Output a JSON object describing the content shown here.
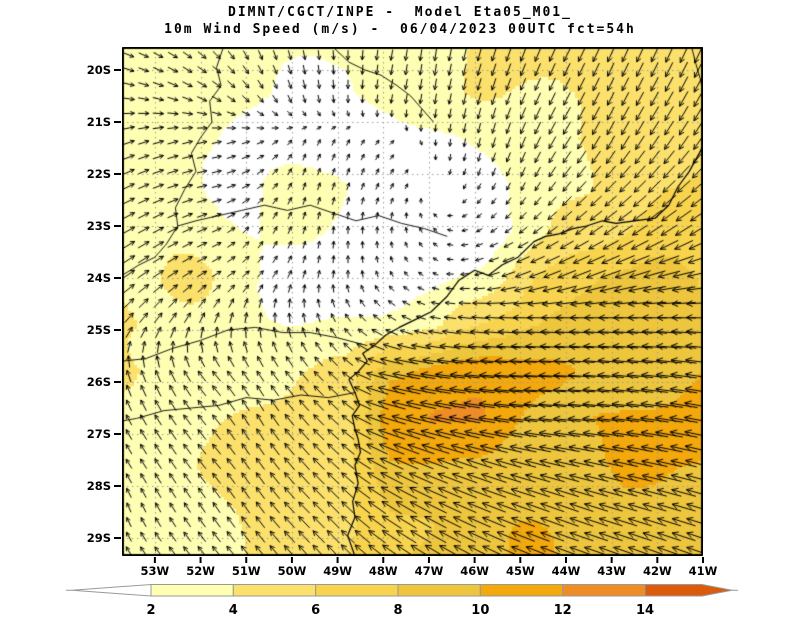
{
  "header": {
    "line1": "DIMNT/CGCT/INPE -  Model Eta05_M01_",
    "line2": "10m Wind Speed (m/s) -  06/04/2023 00UTC fct=54h"
  },
  "chart_data": {
    "type": "heatmap",
    "subtype": "wind-vector-field-map",
    "title": "DIMNT/CGCT/INPE -  Model Eta05_M01_",
    "subtitle": "10m Wind Speed (m/s) -  06/04/2023 00UTC fct=54h",
    "units": "m/s",
    "proj": {
      "lon_min": -53.72,
      "lon_max": -41.0,
      "lat_top": -19.558,
      "lat_bottom": -29.346
    },
    "x_ticks": {
      "labels": [
        "53W",
        "52W",
        "51W",
        "50W",
        "49W",
        "48W",
        "47W",
        "46W",
        "45W",
        "44W",
        "43W",
        "42W",
        "41W"
      ],
      "lons": [
        -53,
        -52,
        -51,
        -50,
        -49,
        -48,
        -47,
        -46,
        -45,
        -44,
        -43,
        -42,
        -41
      ]
    },
    "y_ticks": {
      "labels": [
        "20S",
        "21S",
        "22S",
        "23S",
        "24S",
        "25S",
        "26S",
        "27S",
        "28S",
        "29S"
      ],
      "lats": [
        -20,
        -21,
        -22,
        -23,
        -24,
        -25,
        -26,
        -27,
        -28,
        -29
      ]
    },
    "grid_color": "#999999",
    "frame_color": "#000000",
    "arrow_color": "#000000",
    "coast_color": "#000000",
    "colorbar": {
      "levels": [
        2,
        4,
        6,
        8,
        10,
        12,
        14
      ],
      "labels": [
        "2",
        "4",
        "6",
        "8",
        "10",
        "12",
        "14"
      ],
      "colors": [
        "#ffffb3",
        "#fbe06c",
        "#f8d44e",
        "#eec63e",
        "#f3a80c",
        "#ee8d25",
        "#db5a0b"
      ],
      "under_color": "#ffffff",
      "outline_color": "#999999"
    },
    "wind_grid": {
      "lons": [
        -53.72,
        -52.74,
        -51.76,
        -50.79,
        -49.81,
        -48.83,
        -47.85,
        -46.87,
        -45.9,
        -44.92,
        -43.94,
        -42.96,
        -41.98,
        -41.0
      ],
      "lats": [
        -19.56,
        -20.45,
        -21.34,
        -22.23,
        -23.12,
        -24.01,
        -24.9,
        -25.79,
        -26.68,
        -27.57,
        -28.46,
        -29.35
      ],
      "u": [
        [
          2.5,
          2.5,
          2.0,
          1.0,
          0.5,
          0.0,
          -0.5,
          -0.5,
          -1.0,
          -1.5,
          -2.0,
          -2.0,
          -2.0,
          -2.5
        ],
        [
          3.0,
          3.0,
          2.5,
          1.5,
          0.5,
          0.0,
          -0.5,
          -0.5,
          -1.0,
          -1.5,
          -2.0,
          -2.0,
          -2.5,
          -3.0
        ],
        [
          3.0,
          3.0,
          2.5,
          1.5,
          0.5,
          0.5,
          0.5,
          0.0,
          -0.5,
          -1.5,
          -2.5,
          -2.5,
          -3.0,
          -3.0
        ],
        [
          3.0,
          3.0,
          2.5,
          1.5,
          0.5,
          0.5,
          0.5,
          0.0,
          -0.5,
          -1.0,
          -2.5,
          -3.5,
          -4.0,
          -4.5
        ],
        [
          3.5,
          3.0,
          2.5,
          1.0,
          0.5,
          0.0,
          0.0,
          -0.5,
          -1.0,
          -2.0,
          -3.5,
          -4.5,
          -5.5,
          -6.0
        ],
        [
          3.5,
          3.0,
          2.5,
          1.5,
          0.5,
          0.0,
          -0.5,
          -0.8,
          -2.5,
          -5.5,
          -6.5,
          -7.5,
          -8.0,
          -8.0
        ],
        [
          2.5,
          2.0,
          1.0,
          0.0,
          -0.5,
          -1.5,
          -2.5,
          -3.0,
          -5.5,
          -7.5,
          -8.5,
          -9.0,
          -9.0,
          -9.0
        ],
        [
          -1.0,
          -1.5,
          -2.5,
          -2.0,
          -2.5,
          -3.0,
          -9.5,
          -11.0,
          -11.0,
          -10.5,
          -10.0,
          -9.5,
          -9.5,
          -9.5
        ],
        [
          -1.5,
          -2.0,
          -2.5,
          -2.0,
          -3.0,
          -3.5,
          -10.5,
          -12.0,
          -12.0,
          -10.5,
          -10.0,
          -10.0,
          -10.5,
          -10.5
        ],
        [
          -1.5,
          -2.0,
          -2.5,
          -2.5,
          -3.5,
          -4.0,
          -8.5,
          -9.5,
          -9.5,
          -9.5,
          -9.0,
          -9.0,
          -9.5,
          -9.5
        ],
        [
          -1.0,
          -1.5,
          -2.0,
          -2.5,
          -3.5,
          -4.0,
          -7.0,
          -8.0,
          -8.5,
          -8.5,
          -8.5,
          -8.5,
          -8.5,
          -8.5
        ],
        [
          -1.5,
          -2.0,
          -2.5,
          -3.0,
          -3.5,
          -4.5,
          -6.5,
          -7.5,
          -8.0,
          -8.5,
          -8.5,
          -8.5,
          -8.5,
          -8.5
        ]
      ],
      "v": [
        [
          -1.0,
          -1.5,
          -2.0,
          -2.5,
          -2.5,
          -2.5,
          -3.0,
          -3.5,
          -3.5,
          -4.0,
          -4.0,
          -4.5,
          -4.5,
          -5.5
        ],
        [
          -0.5,
          -1.0,
          -1.5,
          -2.0,
          -2.0,
          -2.0,
          -2.5,
          -3.0,
          -3.5,
          -3.5,
          -4.0,
          -4.0,
          -4.5,
          -5.5
        ],
        [
          1.0,
          0.8,
          0.5,
          0.5,
          1.0,
          1.0,
          0.5,
          -1.0,
          -2.5,
          -3.5,
          -4.0,
          -4.5,
          -4.5,
          -4.5
        ],
        [
          1.5,
          1.0,
          0.5,
          1.0,
          1.5,
          1.5,
          1.0,
          0.0,
          -1.0,
          -2.0,
          -3.0,
          -3.5,
          -4.0,
          -4.0
        ],
        [
          2.0,
          1.5,
          1.0,
          1.5,
          1.5,
          1.5,
          1.0,
          0.5,
          -0.5,
          -1.5,
          -2.5,
          -3.0,
          -3.5,
          -3.5
        ],
        [
          2.5,
          2.0,
          1.5,
          1.5,
          1.5,
          1.5,
          0.8,
          0.3,
          -0.5,
          -2.0,
          -2.5,
          -2.5,
          -2.0,
          -1.5
        ],
        [
          3.0,
          3.0,
          3.0,
          3.0,
          2.5,
          2.0,
          1.5,
          0.5,
          0.5,
          0.5,
          0.5,
          0.5,
          0.5,
          0.5
        ],
        [
          3.5,
          3.5,
          3.0,
          3.0,
          3.0,
          2.5,
          2.0,
          1.5,
          1.0,
          0.5,
          0.5,
          1.0,
          1.0,
          1.5
        ],
        [
          3.0,
          3.0,
          3.0,
          3.5,
          3.5,
          3.0,
          3.0,
          2.5,
          2.0,
          1.0,
          1.0,
          1.0,
          1.5,
          2.0
        ],
        [
          2.5,
          3.0,
          3.0,
          3.5,
          4.0,
          3.5,
          4.0,
          3.5,
          3.0,
          2.5,
          2.0,
          2.0,
          2.0,
          2.5
        ],
        [
          2.5,
          2.5,
          3.0,
          3.5,
          3.5,
          4.0,
          4.5,
          4.0,
          3.5,
          3.0,
          3.0,
          2.5,
          2.5,
          2.5
        ],
        [
          2.5,
          2.5,
          3.0,
          3.5,
          4.0,
          4.5,
          4.5,
          4.5,
          4.0,
          3.5,
          3.0,
          3.0,
          3.0,
          3.0
        ]
      ]
    },
    "map_lines": {
      "coastline": [
        [
          -48.62,
          -29.35
        ],
        [
          -48.78,
          -28.95
        ],
        [
          -48.62,
          -28.6
        ],
        [
          -48.67,
          -28.3
        ],
        [
          -48.55,
          -27.95
        ],
        [
          -48.62,
          -27.6
        ],
        [
          -48.5,
          -27.35
        ],
        [
          -48.55,
          -27.1
        ],
        [
          -48.62,
          -26.9
        ],
        [
          -48.68,
          -26.65
        ],
        [
          -48.52,
          -26.45
        ],
        [
          -48.62,
          -26.2
        ],
        [
          -48.75,
          -25.95
        ],
        [
          -48.55,
          -25.8
        ],
        [
          -48.35,
          -25.6
        ],
        [
          -48.45,
          -25.45
        ],
        [
          -48.2,
          -25.3
        ],
        [
          -47.95,
          -25.1
        ],
        [
          -47.65,
          -24.95
        ],
        [
          -47.3,
          -24.8
        ],
        [
          -46.95,
          -24.65
        ],
        [
          -46.6,
          -24.35
        ],
        [
          -46.35,
          -24.05
        ],
        [
          -46.0,
          -23.85
        ],
        [
          -45.7,
          -23.95
        ],
        [
          -45.4,
          -23.75
        ],
        [
          -45.05,
          -23.6
        ],
        [
          -44.7,
          -23.3
        ],
        [
          -44.45,
          -23.2
        ],
        [
          -44.15,
          -23.15
        ],
        [
          -43.85,
          -23.05
        ],
        [
          -43.55,
          -23.0
        ],
        [
          -43.2,
          -22.9
        ],
        [
          -42.9,
          -22.95
        ],
        [
          -42.5,
          -22.9
        ],
        [
          -42.05,
          -22.85
        ],
        [
          -41.75,
          -22.6
        ],
        [
          -41.55,
          -22.25
        ],
        [
          -41.3,
          -21.95
        ],
        [
          -41.05,
          -21.55
        ],
        [
          -41.0,
          -21.4
        ]
      ],
      "borders": [
        [
          [
            -51.5,
            -19.56
          ],
          [
            -51.65,
            -19.95
          ],
          [
            -51.55,
            -20.3
          ],
          [
            -51.8,
            -20.6
          ],
          [
            -51.75,
            -21.0
          ],
          [
            -52.0,
            -21.3
          ],
          [
            -52.2,
            -21.6
          ],
          [
            -52.1,
            -21.95
          ],
          [
            -52.35,
            -22.3
          ],
          [
            -52.55,
            -22.65
          ],
          [
            -52.5,
            -23.0
          ],
          [
            -52.75,
            -23.35
          ],
          [
            -53.0,
            -23.6
          ],
          [
            -53.35,
            -23.75
          ],
          [
            -53.72,
            -23.95
          ]
        ],
        [
          [
            -49.1,
            -19.56
          ],
          [
            -48.75,
            -19.85
          ],
          [
            -48.4,
            -20.0
          ],
          [
            -48.05,
            -20.1
          ],
          [
            -47.7,
            -20.3
          ],
          [
            -47.4,
            -20.5
          ],
          [
            -47.15,
            -20.75
          ],
          [
            -46.9,
            -21.0
          ]
        ],
        [
          [
            -46.6,
            -23.2
          ],
          [
            -47.1,
            -23.05
          ],
          [
            -47.6,
            -22.95
          ],
          [
            -48.1,
            -22.8
          ],
          [
            -48.6,
            -22.9
          ],
          [
            -49.1,
            -22.75
          ],
          [
            -49.6,
            -22.6
          ],
          [
            -50.1,
            -22.7
          ],
          [
            -50.6,
            -22.6
          ],
          [
            -51.1,
            -22.7
          ],
          [
            -51.6,
            -22.8
          ],
          [
            -52.1,
            -22.9
          ],
          [
            -52.5,
            -23.0
          ]
        ],
        [
          [
            -48.35,
            -25.3
          ],
          [
            -49.0,
            -25.15
          ],
          [
            -49.6,
            -25.05
          ],
          [
            -50.2,
            -25.05
          ],
          [
            -50.8,
            -24.95
          ],
          [
            -51.4,
            -25.0
          ],
          [
            -52.0,
            -25.2
          ],
          [
            -52.6,
            -25.35
          ],
          [
            -53.2,
            -25.55
          ],
          [
            -53.72,
            -25.6
          ]
        ],
        [
          [
            -48.6,
            -26.2
          ],
          [
            -49.2,
            -26.3
          ],
          [
            -49.8,
            -26.25
          ],
          [
            -50.4,
            -26.35
          ],
          [
            -51.0,
            -26.3
          ],
          [
            -51.6,
            -26.45
          ],
          [
            -52.2,
            -26.5
          ],
          [
            -52.8,
            -26.55
          ],
          [
            -53.4,
            -26.7
          ],
          [
            -53.72,
            -26.75
          ]
        ],
        [
          [
            -41.25,
            -19.56
          ],
          [
            -41.15,
            -19.9
          ],
          [
            -41.05,
            -20.2
          ],
          [
            -41.0,
            -20.5
          ]
        ]
      ]
    }
  }
}
